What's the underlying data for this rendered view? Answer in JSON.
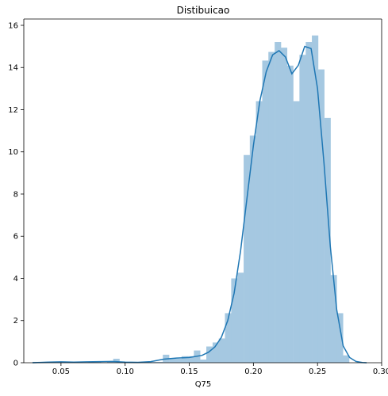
{
  "chart_data": {
    "type": "bar",
    "title": "Distibuicao",
    "xlabel": "Q75",
    "ylabel": "",
    "xlim": [
      0.021,
      0.3
    ],
    "ylim": [
      0,
      16.3
    ],
    "xticks": [
      0.05,
      0.1,
      0.15,
      0.2,
      0.25,
      0.3
    ],
    "xtick_labels": [
      "0.05",
      "0.10",
      "0.15",
      "0.20",
      "0.25",
      "0.30"
    ],
    "yticks": [
      0,
      2,
      4,
      6,
      8,
      10,
      12,
      14,
      16
    ],
    "ytick_labels": [
      "0",
      "2",
      "4",
      "6",
      "8",
      "10",
      "12",
      "14",
      "16"
    ],
    "grid": false,
    "colors": {
      "bars": "#a5c8e1",
      "kde": "#1f77b4",
      "axes": "#000000"
    },
    "histogram": {
      "bin_width": 0.00484,
      "bin_lefts": [
        0.0278,
        0.0326,
        0.0375,
        0.0423,
        0.0472,
        0.052,
        0.0568,
        0.0617,
        0.0665,
        0.0714,
        0.0762,
        0.081,
        0.0859,
        0.0907,
        0.0956,
        0.1004,
        0.1052,
        0.1101,
        0.1149,
        0.1198,
        0.1246,
        0.1294,
        0.1343,
        0.1391,
        0.144,
        0.1488,
        0.1536,
        0.1585,
        0.1633,
        0.1682,
        0.173,
        0.1778,
        0.1827,
        0.1875,
        0.1924,
        0.1972,
        0.202,
        0.2069,
        0.2117,
        0.2166,
        0.2214,
        0.2262,
        0.2311,
        0.2359,
        0.2408,
        0.2456,
        0.2504,
        0.2553,
        0.2601,
        0.265,
        0.2698
      ],
      "density": [
        0.04,
        0.0,
        0.04,
        0.04,
        0.04,
        0.04,
        0.04,
        0.04,
        0.0,
        0.04,
        0.04,
        0.0,
        0.04,
        0.19,
        0.04,
        0.0,
        0.0,
        0.0,
        0.04,
        0.04,
        0.04,
        0.38,
        0.19,
        0.19,
        0.31,
        0.31,
        0.58,
        0.15,
        0.77,
        0.96,
        1.15,
        2.35,
        4.0,
        4.27,
        9.85,
        10.77,
        12.4,
        14.33,
        14.74,
        15.21,
        14.94,
        14.09,
        12.4,
        14.6,
        15.21,
        15.52,
        13.91,
        11.61,
        4.16,
        2.35,
        0.35
      ]
    },
    "kde": {
      "x": [
        0.0278,
        0.04,
        0.05,
        0.06,
        0.07,
        0.08,
        0.09,
        0.1,
        0.11,
        0.12,
        0.13,
        0.14,
        0.15,
        0.16,
        0.165,
        0.17,
        0.175,
        0.18,
        0.185,
        0.19,
        0.195,
        0.2,
        0.205,
        0.21,
        0.215,
        0.22,
        0.225,
        0.23,
        0.235,
        0.24,
        0.245,
        0.25,
        0.255,
        0.26,
        0.265,
        0.27,
        0.275,
        0.28,
        0.285,
        0.2883
      ],
      "y": [
        0.0,
        0.03,
        0.04,
        0.03,
        0.04,
        0.05,
        0.06,
        0.03,
        0.02,
        0.05,
        0.17,
        0.22,
        0.25,
        0.35,
        0.5,
        0.75,
        1.2,
        2.0,
        3.3,
        5.3,
        7.8,
        10.3,
        12.4,
        13.8,
        14.6,
        14.8,
        14.5,
        13.7,
        14.1,
        15.0,
        14.9,
        13.0,
        9.5,
        5.5,
        2.5,
        0.8,
        0.25,
        0.06,
        0.01,
        0.0
      ]
    }
  }
}
